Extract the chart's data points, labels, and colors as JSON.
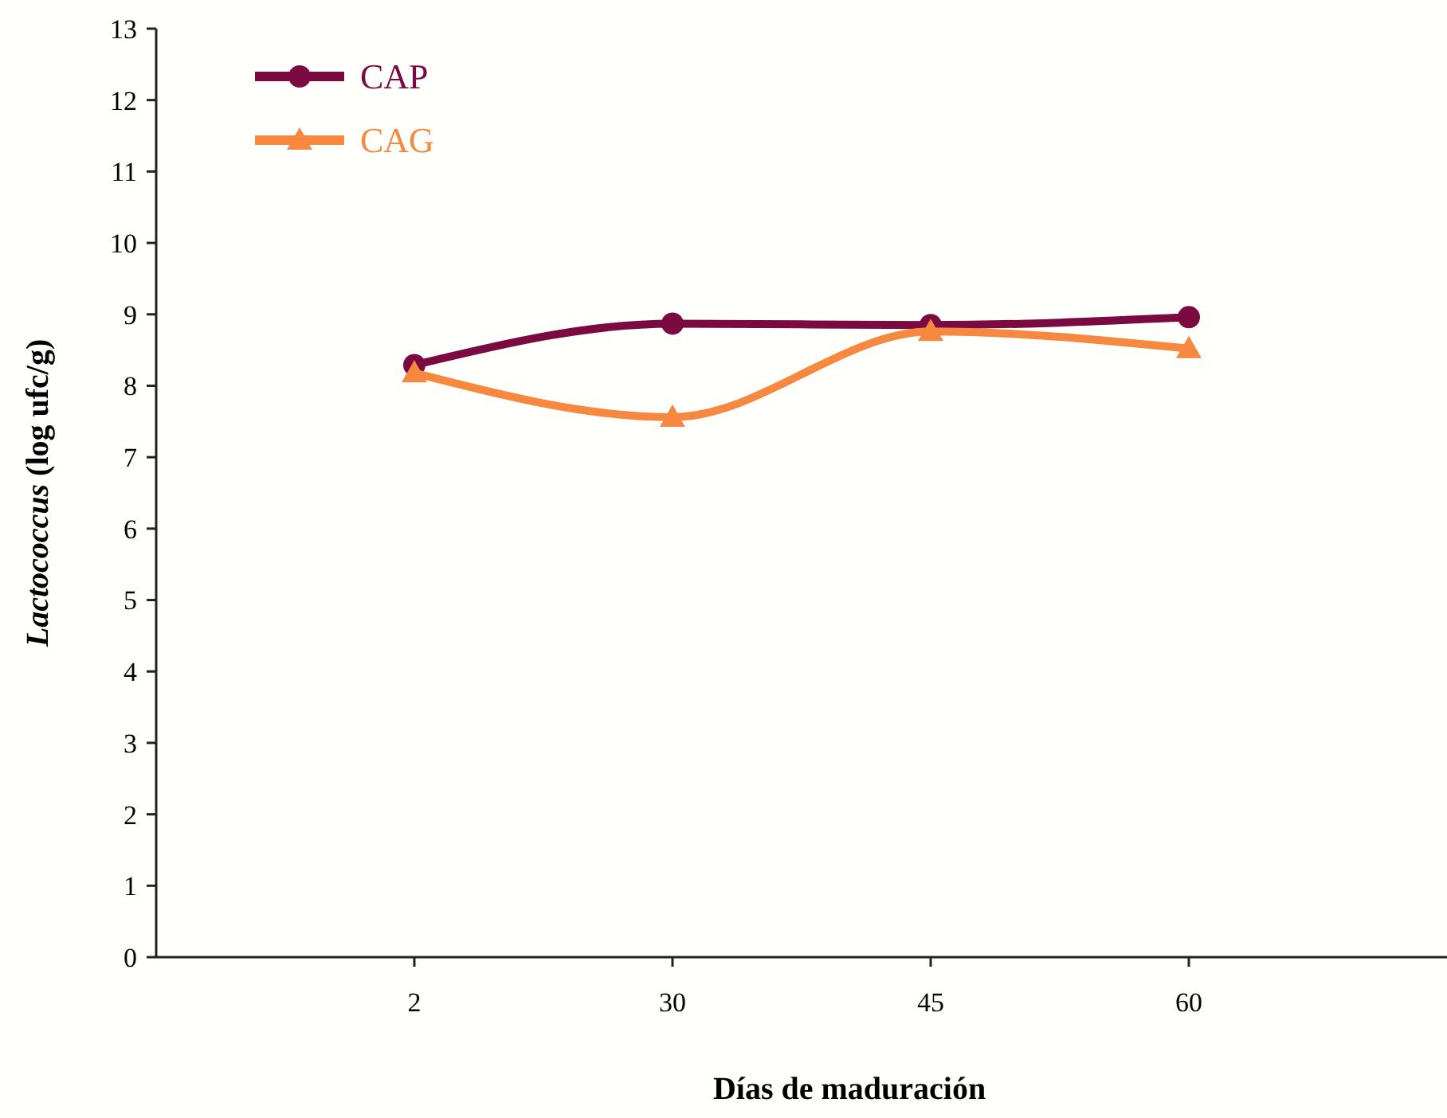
{
  "chart_data": {
    "type": "line",
    "xlabel": "Días de maduración",
    "ylabel": "Lactococcus (log ufc/g)",
    "categories": [
      "2",
      "30",
      "45",
      "60"
    ],
    "ylim": [
      0,
      13
    ],
    "yticks": [
      0,
      1,
      2,
      3,
      4,
      5,
      6,
      7,
      8,
      9,
      10,
      11,
      12,
      13
    ],
    "grid": false,
    "legend": "top left",
    "line_style": "solid",
    "series": [
      {
        "name": "CAP",
        "color": "#7a0a40",
        "marker": "circle",
        "values": [
          8.29,
          8.87,
          8.85,
          8.96
        ]
      },
      {
        "name": "CAG",
        "color": "#f7883f",
        "marker": "triangle",
        "values": [
          8.18,
          7.56,
          8.76,
          8.52
        ]
      }
    ]
  }
}
